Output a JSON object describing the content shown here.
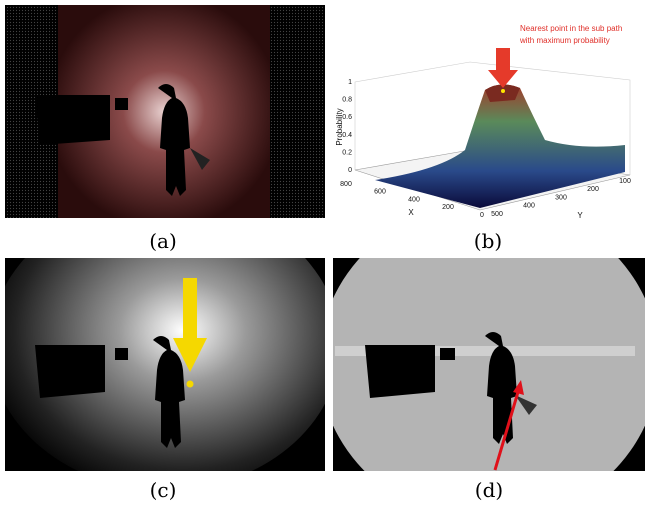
{
  "panels": [
    {
      "caption": "(a)"
    },
    {
      "caption": "(b)",
      "annotation_lines": [
        "Nearest point in the sub path",
        "with maximum probability"
      ],
      "z_label": "Probability",
      "x_label": "X",
      "y_label": "Y",
      "z_ticks": [
        0,
        0.2,
        0.4,
        0.6,
        0.8,
        1
      ],
      "x_ticks": [
        800,
        600,
        400,
        200,
        0
      ],
      "y_ticks": [
        500,
        400,
        300,
        200,
        100
      ]
    },
    {
      "caption": "(c)"
    },
    {
      "caption": "(d)"
    }
  ]
}
